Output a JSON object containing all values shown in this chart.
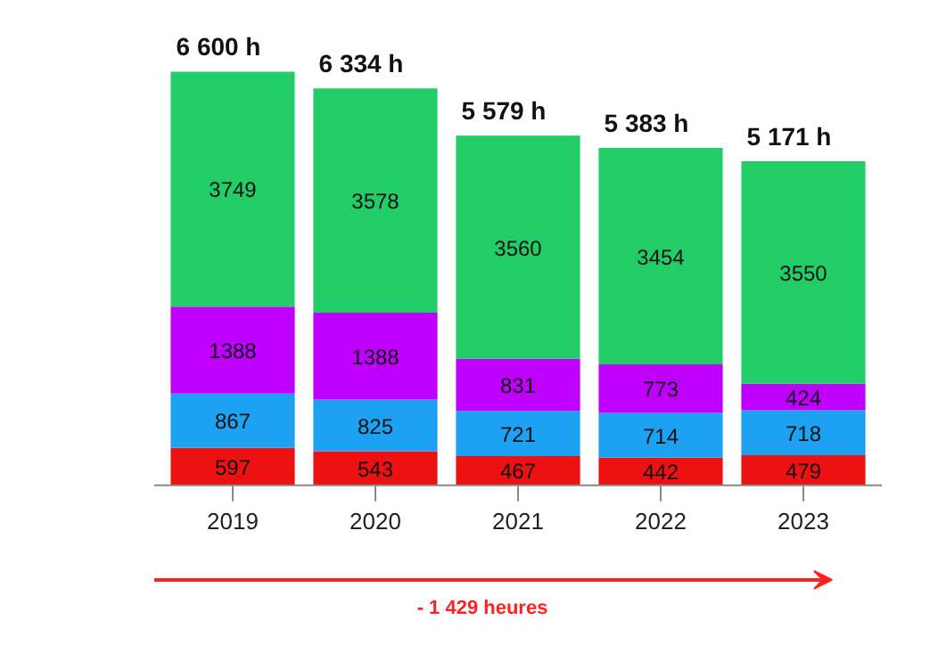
{
  "chart_data": {
    "type": "bar",
    "stacked": true,
    "data_labels": true,
    "grid": false,
    "categories": [
      "2019",
      "2020",
      "2021",
      "2022",
      "2023"
    ],
    "series": [
      {
        "color": "#ee1111",
        "values": [
          597,
          543,
          467,
          442,
          479
        ]
      },
      {
        "color": "#1da1f2",
        "values": [
          867,
          825,
          721,
          714,
          718
        ]
      },
      {
        "color": "#bf00ff",
        "values": [
          1388,
          1388,
          831,
          773,
          424
        ]
      },
      {
        "color": "#22cc66",
        "values": [
          3749,
          3578,
          3560,
          3454,
          3550
        ]
      }
    ],
    "totals": [
      "6 600 h",
      "6 334 h",
      "5 579 h",
      "5 383 h",
      "5 171 h"
    ],
    "annotations": [
      "- 1 429 heures"
    ]
  }
}
